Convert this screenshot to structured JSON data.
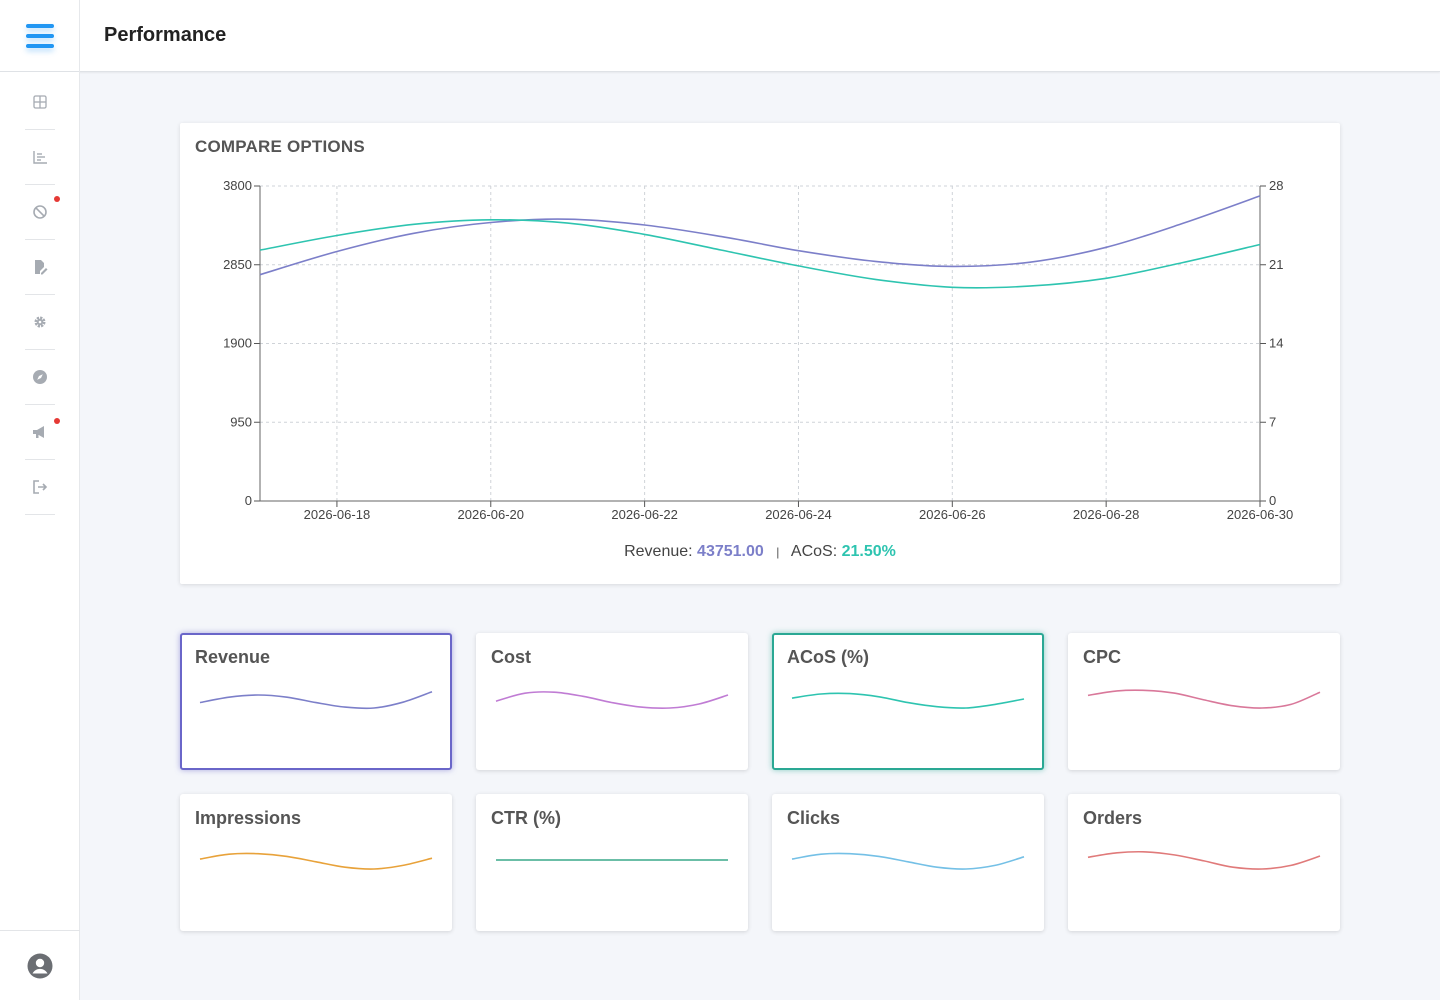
{
  "header": {
    "title": "Performance",
    "menu_icon": "hamburger-menu-icon",
    "accent": "#2196f3"
  },
  "sidebar": {
    "items": [
      {
        "icon": "dashboard-grid-icon",
        "badge": false
      },
      {
        "icon": "bar-chart-icon",
        "badge": false
      },
      {
        "icon": "ban-icon",
        "badge": true
      },
      {
        "icon": "edit-document-icon",
        "badge": false
      },
      {
        "icon": "gear-icon",
        "badge": false
      },
      {
        "icon": "compass-icon",
        "badge": false
      },
      {
        "icon": "megaphone-icon",
        "badge": true
      },
      {
        "icon": "sign-out-icon",
        "badge": false
      }
    ],
    "footer_icon": "user-avatar-icon",
    "badge_color": "#e53935"
  },
  "compare": {
    "title": "COMPARE OPTIONS",
    "summary": {
      "revenue_label": "Revenue:",
      "revenue_value": "43751.00",
      "separator": "|",
      "acos_label": "ACoS:",
      "acos_value": "21.50%"
    }
  },
  "chart_data": {
    "type": "line",
    "title": "COMPARE OPTIONS",
    "x": [
      "2026-06-17",
      "2026-06-18",
      "2026-06-19",
      "2026-06-20",
      "2026-06-21",
      "2026-06-22",
      "2026-06-23",
      "2026-06-24",
      "2026-06-25",
      "2026-06-26",
      "2026-06-27",
      "2026-06-28",
      "2026-06-29",
      "2026-06-30"
    ],
    "x_tick_labels": [
      "2026-06-18",
      "2026-06-20",
      "2026-06-22",
      "2026-06-24",
      "2026-06-26",
      "2026-06-28",
      "2026-06-30"
    ],
    "y_left": {
      "ticks": [
        "0",
        "950",
        "1900",
        "2850",
        "3800"
      ],
      "range": [
        0,
        3800
      ]
    },
    "y_right": {
      "ticks": [
        "0",
        "7",
        "14",
        "21",
        "28"
      ],
      "range": [
        0,
        28
      ]
    },
    "grid": true,
    "series": [
      {
        "name": "Revenue",
        "axis": "left",
        "color": "#7c7fc9",
        "values": [
          2730,
          3010,
          3230,
          3360,
          3400,
          3330,
          3190,
          3020,
          2890,
          2830,
          2880,
          3060,
          3350,
          3680
        ]
      },
      {
        "name": "ACoS",
        "axis": "right",
        "color": "#2ec4b0",
        "values": [
          22.3,
          23.6,
          24.6,
          25.0,
          24.7,
          23.7,
          22.3,
          20.9,
          19.7,
          19.0,
          19.1,
          19.8,
          21.2,
          22.8
        ]
      }
    ]
  },
  "metrics": [
    {
      "title": "Revenue",
      "color": "#7c7fc9",
      "selected": "rev",
      "values": [
        0.3,
        0.6,
        0.72,
        0.6,
        0.3,
        0.05,
        0.0,
        0.32,
        0.9
      ]
    },
    {
      "title": "Cost",
      "color": "#c07cd4",
      "selected": "",
      "values": [
        0.38,
        0.82,
        0.88,
        0.65,
        0.3,
        0.05,
        0.0,
        0.22,
        0.72
      ]
    },
    {
      "title": "ACoS (%)",
      "color": "#2ec4b0",
      "selected": "acos",
      "values": [
        0.55,
        0.78,
        0.8,
        0.62,
        0.3,
        0.07,
        0.0,
        0.2,
        0.5
      ]
    },
    {
      "title": "CPC",
      "color": "#d9789a",
      "selected": "",
      "values": [
        0.7,
        0.95,
        0.98,
        0.82,
        0.45,
        0.12,
        0.0,
        0.2,
        0.88
      ]
    },
    {
      "title": "Impressions",
      "color": "#e8a23a",
      "selected": "",
      "values": [
        0.55,
        0.82,
        0.85,
        0.7,
        0.4,
        0.1,
        0.0,
        0.2,
        0.6
      ]
    },
    {
      "title": "CTR (%)",
      "color": "#3aa88a",
      "selected": "",
      "values": [
        0.5,
        0.5,
        0.5,
        0.5,
        0.5,
        0.5,
        0.5,
        0.5,
        0.5
      ]
    },
    {
      "title": "Clicks",
      "color": "#74c0e6",
      "selected": "",
      "values": [
        0.55,
        0.82,
        0.85,
        0.7,
        0.4,
        0.1,
        0.0,
        0.2,
        0.68
      ]
    },
    {
      "title": "Orders",
      "color": "#e07a7a",
      "selected": "",
      "values": [
        0.65,
        0.9,
        0.95,
        0.78,
        0.45,
        0.1,
        0.0,
        0.2,
        0.72
      ]
    }
  ]
}
